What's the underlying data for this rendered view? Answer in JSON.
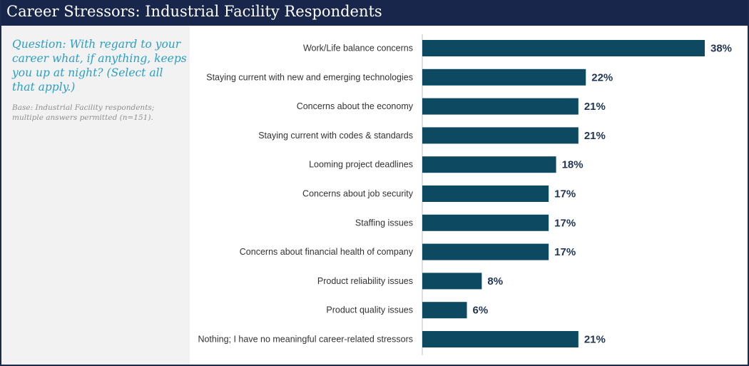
{
  "header": {
    "title": "Career Stressors: Industrial Facility Respondents"
  },
  "sidebar": {
    "question": "Question: With regard to your career what, if anything, keeps you up at night? (Select all that apply.)",
    "base": "Base: Industrial Facility respondents; multiple answers permitted (n=151)."
  },
  "colors": {
    "bar": "#0d4a62",
    "header_bg": "#17264a",
    "question_text": "#2a9fc4"
  },
  "chart_data": {
    "type": "bar",
    "orientation": "horizontal",
    "categories": [
      "Work/Life balance concerns",
      "Staying current with new and emerging technologies",
      "Concerns about the economy",
      "Staying current with codes & standards",
      "Looming project deadlines",
      "Concerns about job security",
      "Staffing issues",
      "Concerns about financial health of company",
      "Product reliability issues",
      "Product quality issues",
      "Nothing; I have no meaningful career-related stressors"
    ],
    "values": [
      38,
      22,
      21,
      21,
      18,
      17,
      17,
      17,
      8,
      6,
      21
    ],
    "value_labels": [
      "38%",
      "22%",
      "21%",
      "21%",
      "18%",
      "17%",
      "17%",
      "17%",
      "8%",
      "6%",
      "21%"
    ],
    "unit": "%",
    "xlim": [
      0,
      38
    ],
    "grid": false,
    "legend": "none"
  }
}
